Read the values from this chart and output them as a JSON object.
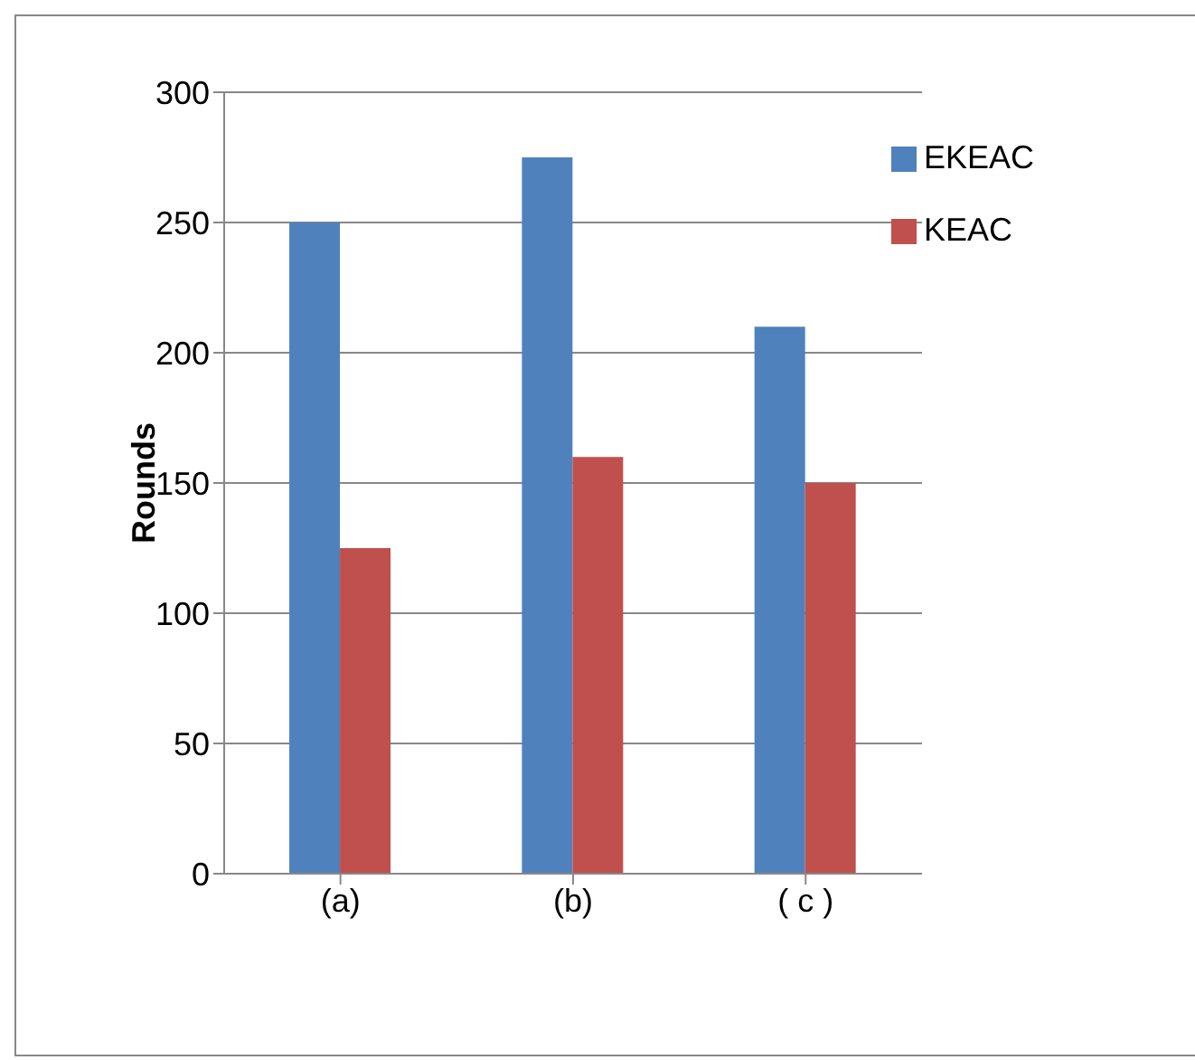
{
  "chart_data": {
    "type": "bar",
    "ylabel": "Rounds",
    "categories": [
      "(a)",
      "(b)",
      "( c )"
    ],
    "series": [
      {
        "name": "EKEAC",
        "color": "#4f81bd",
        "values": [
          250,
          275,
          210
        ]
      },
      {
        "name": "KEAC",
        "color": "#c0504d",
        "values": [
          125,
          160,
          150
        ]
      }
    ],
    "ylim": [
      0,
      300
    ],
    "yticks": [
      0,
      50,
      100,
      150,
      200,
      250,
      300
    ],
    "grid": "y",
    "legend": "top right"
  }
}
